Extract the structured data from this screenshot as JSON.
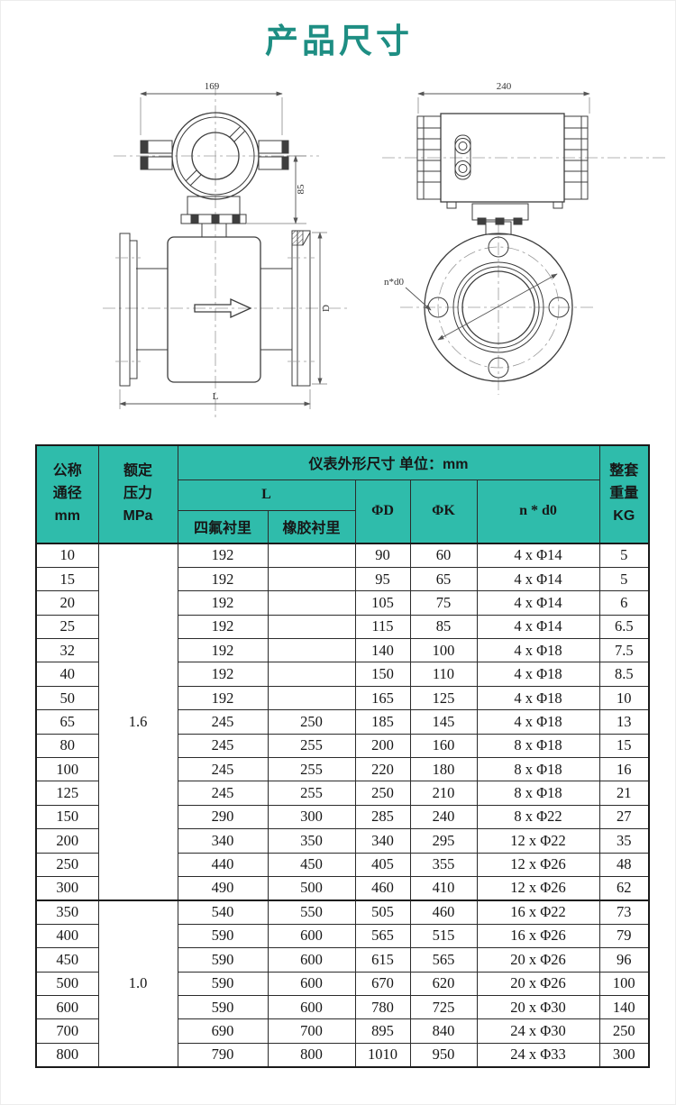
{
  "page": {
    "title": "产品尺寸"
  },
  "colors": {
    "header_teal": "#2fbcab",
    "title_teal": "#1e8e83"
  },
  "drawings": {
    "front_view": {
      "dim_width": "169",
      "dim_height": "85",
      "dim_length": "L",
      "dim_diameter": "D"
    },
    "side_view": {
      "dim_width": "240",
      "bolt_label": "n*d0"
    }
  },
  "table": {
    "header": {
      "col_dn": "公称\n通径\nmm",
      "col_pressure": "额定\n压力\nMPa",
      "col_dims_title": "仪表外形尺寸  单位：mm",
      "col_l": "L",
      "col_l_ptfe": "四氟衬里",
      "col_l_rubber": "橡胶衬里",
      "col_d": "ΦD",
      "col_k": "ΦK",
      "col_nd0": "n * d0",
      "col_weight": "整套\n重量\nKG"
    },
    "sections": [
      {
        "pressure": "1.6",
        "rows": [
          {
            "dn": "10",
            "l_ptfe": "192",
            "l_rubber": "",
            "d": "90",
            "k": "60",
            "n_d0": "4 x Φ14",
            "weight": "5"
          },
          {
            "dn": "15",
            "l_ptfe": "192",
            "l_rubber": "",
            "d": "95",
            "k": "65",
            "n_d0": "4 x Φ14",
            "weight": "5"
          },
          {
            "dn": "20",
            "l_ptfe": "192",
            "l_rubber": "",
            "d": "105",
            "k": "75",
            "n_d0": "4 x Φ14",
            "weight": "6"
          },
          {
            "dn": "25",
            "l_ptfe": "192",
            "l_rubber": "",
            "d": "115",
            "k": "85",
            "n_d0": "4 x Φ14",
            "weight": "6.5"
          },
          {
            "dn": "32",
            "l_ptfe": "192",
            "l_rubber": "",
            "d": "140",
            "k": "100",
            "n_d0": "4 x Φ18",
            "weight": "7.5"
          },
          {
            "dn": "40",
            "l_ptfe": "192",
            "l_rubber": "",
            "d": "150",
            "k": "110",
            "n_d0": "4 x Φ18",
            "weight": "8.5"
          },
          {
            "dn": "50",
            "l_ptfe": "192",
            "l_rubber": "",
            "d": "165",
            "k": "125",
            "n_d0": "4 x Φ18",
            "weight": "10"
          },
          {
            "dn": "65",
            "l_ptfe": "245",
            "l_rubber": "250",
            "d": "185",
            "k": "145",
            "n_d0": "4 x Φ18",
            "weight": "13"
          },
          {
            "dn": "80",
            "l_ptfe": "245",
            "l_rubber": "255",
            "d": "200",
            "k": "160",
            "n_d0": "8 x Φ18",
            "weight": "15"
          },
          {
            "dn": "100",
            "l_ptfe": "245",
            "l_rubber": "255",
            "d": "220",
            "k": "180",
            "n_d0": "8 x Φ18",
            "weight": "16"
          },
          {
            "dn": "125",
            "l_ptfe": "245",
            "l_rubber": "255",
            "d": "250",
            "k": "210",
            "n_d0": "8 x Φ18",
            "weight": "21"
          },
          {
            "dn": "150",
            "l_ptfe": "290",
            "l_rubber": "300",
            "d": "285",
            "k": "240",
            "n_d0": "8 x Φ22",
            "weight": "27"
          },
          {
            "dn": "200",
            "l_ptfe": "340",
            "l_rubber": "350",
            "d": "340",
            "k": "295",
            "n_d0": "12 x Φ22",
            "weight": "35"
          },
          {
            "dn": "250",
            "l_ptfe": "440",
            "l_rubber": "450",
            "d": "405",
            "k": "355",
            "n_d0": "12 x Φ26",
            "weight": "48"
          },
          {
            "dn": "300",
            "l_ptfe": "490",
            "l_rubber": "500",
            "d": "460",
            "k": "410",
            "n_d0": "12 x Φ26",
            "weight": "62"
          }
        ]
      },
      {
        "pressure": "1.0",
        "rows": [
          {
            "dn": "350",
            "l_ptfe": "540",
            "l_rubber": "550",
            "d": "505",
            "k": "460",
            "n_d0": "16 x Φ22",
            "weight": "73"
          },
          {
            "dn": "400",
            "l_ptfe": "590",
            "l_rubber": "600",
            "d": "565",
            "k": "515",
            "n_d0": "16 x Φ26",
            "weight": "79"
          },
          {
            "dn": "450",
            "l_ptfe": "590",
            "l_rubber": "600",
            "d": "615",
            "k": "565",
            "n_d0": "20 x Φ26",
            "weight": "96"
          },
          {
            "dn": "500",
            "l_ptfe": "590",
            "l_rubber": "600",
            "d": "670",
            "k": "620",
            "n_d0": "20 x Φ26",
            "weight": "100"
          },
          {
            "dn": "600",
            "l_ptfe": "590",
            "l_rubber": "600",
            "d": "780",
            "k": "725",
            "n_d0": "20 x Φ30",
            "weight": "140"
          },
          {
            "dn": "700",
            "l_ptfe": "690",
            "l_rubber": "700",
            "d": "895",
            "k": "840",
            "n_d0": "24 x Φ30",
            "weight": "250"
          },
          {
            "dn": "800",
            "l_ptfe": "790",
            "l_rubber": "800",
            "d": "1010",
            "k": "950",
            "n_d0": "24 x Φ33",
            "weight": "300"
          }
        ]
      }
    ]
  }
}
